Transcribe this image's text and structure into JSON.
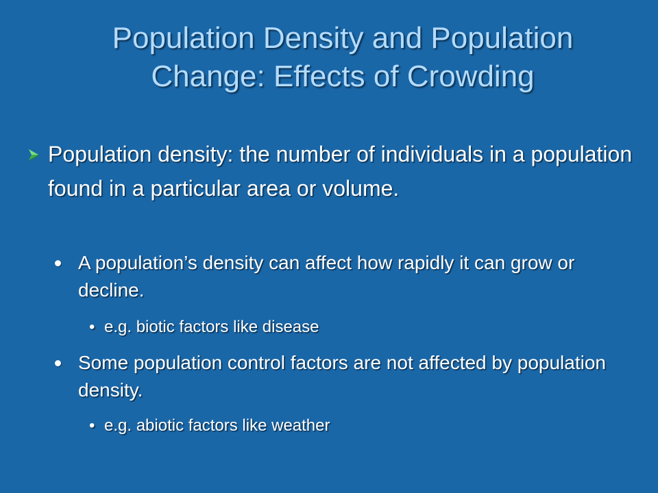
{
  "slide": {
    "title_line1": "Population Density and Population",
    "title_line2": "Change: Effects of Crowding",
    "colors": {
      "background": "#1a67a8",
      "title": "#b3dcff",
      "body_text": "#ffffff",
      "arrow_bullet": "#3db04a"
    },
    "bullet": {
      "icon": "arrow-bullet-icon",
      "text": "Population density: the number of individuals in a population found in a particular area or volume."
    },
    "sub_bullets": [
      {
        "icon": "round-bullet-icon",
        "text": "A population’s density can affect how rapidly it can grow or decline.",
        "example": "e.g. biotic factors like disease"
      },
      {
        "icon": "round-bullet-icon",
        "text": "Some population control factors are not affected by population density.",
        "example": "e.g. abiotic factors like weather"
      }
    ]
  }
}
